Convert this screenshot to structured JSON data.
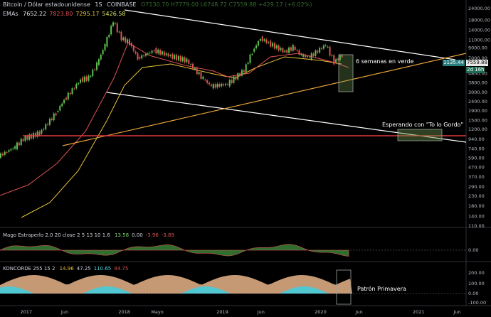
{
  "header": {
    "symbol": "Bitcoin / Dólar estadounidense",
    "interval": "1S",
    "exchange": "COINBASE",
    "ohlc": "O7130.70  H7779.00  L6748.72  C7559.88  +429.17 (+6.02%)"
  },
  "ema_legend": {
    "label": "EMAs",
    "values": [
      "7652.22",
      "7823.80",
      "7295.17",
      "5426.58"
    ],
    "colors": [
      "#e2e2e2",
      "#e05252",
      "#e6c33a",
      "#d8e26a"
    ]
  },
  "indicators": {
    "mago": {
      "label": "Mago Estraperlo 2.0 20 close 2 5 13 10 1.6",
      "values": [
        "13.58",
        "0.00",
        "-3.96",
        "-3.89"
      ],
      "colors": [
        "#7bd36b",
        "#cfd3dc",
        "#e05252",
        "#e05252"
      ]
    },
    "koncorde": {
      "label": "KONCORDE 255 15 2",
      "values": [
        "14.96",
        "47.25",
        "110.65",
        "44.75"
      ],
      "colors": [
        "#e6c33a",
        "#cfd3dc",
        "#57d4e8",
        "#e05252"
      ]
    }
  },
  "annotations": {
    "six_weeks": "6 semanas en verde",
    "waiting": "Esperando con \"To lo Gordo\"",
    "spring": "Patrón Primavera"
  },
  "price_tags": {
    "last_price": "7559.88",
    "line_value": "1135.44",
    "countdown": "2d 16h"
  },
  "price_axis": [
    "24000.00",
    "18000.00",
    "14000.00",
    "11000.00",
    "9000.00",
    "7000.00",
    "6000.00",
    "4800.00",
    "3800.00",
    "3000.00",
    "2400.00",
    "1900.00",
    "1500.00",
    "1200.00",
    "940.00",
    "740.00",
    "590.00",
    "470.00",
    "370.00",
    "290.00",
    "230.00",
    "180.00",
    "140.00",
    "110.00"
  ],
  "mago_axis": [
    "0.00"
  ],
  "koncorde_axis": [
    "200.00",
    "100.00",
    "0.00",
    "-100.00"
  ],
  "time_axis": [
    "2017",
    "Jun",
    "2018",
    "Mayo",
    "2019",
    "Jun",
    "2020",
    "Jun",
    "2021",
    "Jun"
  ],
  "colors": {
    "background": "#000000",
    "trendline": "#ffffff",
    "support": "#e8a33a",
    "horizontal_level": "#e03a3a",
    "box_fill": "#6b8f4e",
    "candle_up": "#5fbf4f",
    "candle_down": "#e05252"
  },
  "chart_data": {
    "type": "candlestick",
    "scale": "log",
    "x_range": [
      "2016-10",
      "2021-07"
    ],
    "y_range": [
      110,
      24000
    ],
    "series": [
      {
        "name": "close",
        "x": [
          "2016-10",
          "2016-12",
          "2017-01",
          "2017-03",
          "2017-05",
          "2017-06",
          "2017-08",
          "2017-09",
          "2017-10",
          "2017-11",
          "2017-12",
          "2018-01",
          "2018-02",
          "2018-03",
          "2018-05",
          "2018-07",
          "2018-09",
          "2018-11",
          "2018-12",
          "2019-02",
          "2019-04",
          "2019-05",
          "2019-06",
          "2019-07",
          "2019-09",
          "2019-10",
          "2019-11",
          "2019-12",
          "2020-02",
          "2020-03",
          "2020-04"
        ],
        "values": [
          620,
          780,
          950,
          1100,
          1800,
          2500,
          4100,
          4300,
          6000,
          9800,
          17500,
          11500,
          10300,
          7000,
          8500,
          7400,
          6600,
          4200,
          3500,
          3700,
          5200,
          8200,
          11500,
          10200,
          8200,
          9200,
          7500,
          7200,
          9800,
          6400,
          7560
        ]
      }
    ],
    "emas": [
      "7652.22",
      "7823.80",
      "7295.17",
      "5426.58"
    ]
  }
}
